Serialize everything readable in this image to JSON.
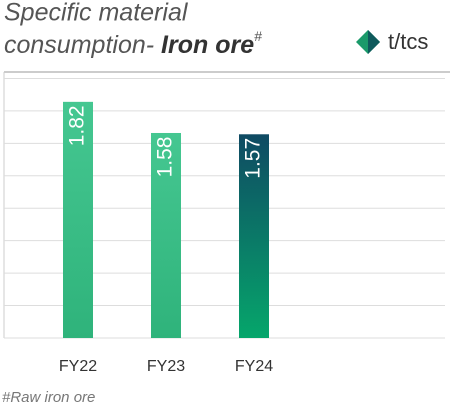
{
  "chart_data": {
    "type": "bar",
    "title_line1": "Specific material",
    "title_line2": "consumption- ",
    "title_emphasis": "Iron ore",
    "title_mark": "#",
    "unit_label": "t/tcs",
    "footnote": "#Raw iron ore",
    "categories": [
      "FY22",
      "FY23",
      "FY24"
    ],
    "values": [
      1.82,
      1.58,
      1.57
    ],
    "bar_gradients": [
      [
        "#45c791",
        "#2fb37b"
      ],
      [
        "#45c791",
        "#2fb37b"
      ],
      [
        "#0f4a63",
        "#06a66b"
      ]
    ],
    "ylim": [
      0,
      2.05
    ],
    "yticks": [
      0,
      0.25,
      0.5,
      0.75,
      1,
      1.25,
      1.5,
      1.75,
      2
    ],
    "grid": true
  }
}
